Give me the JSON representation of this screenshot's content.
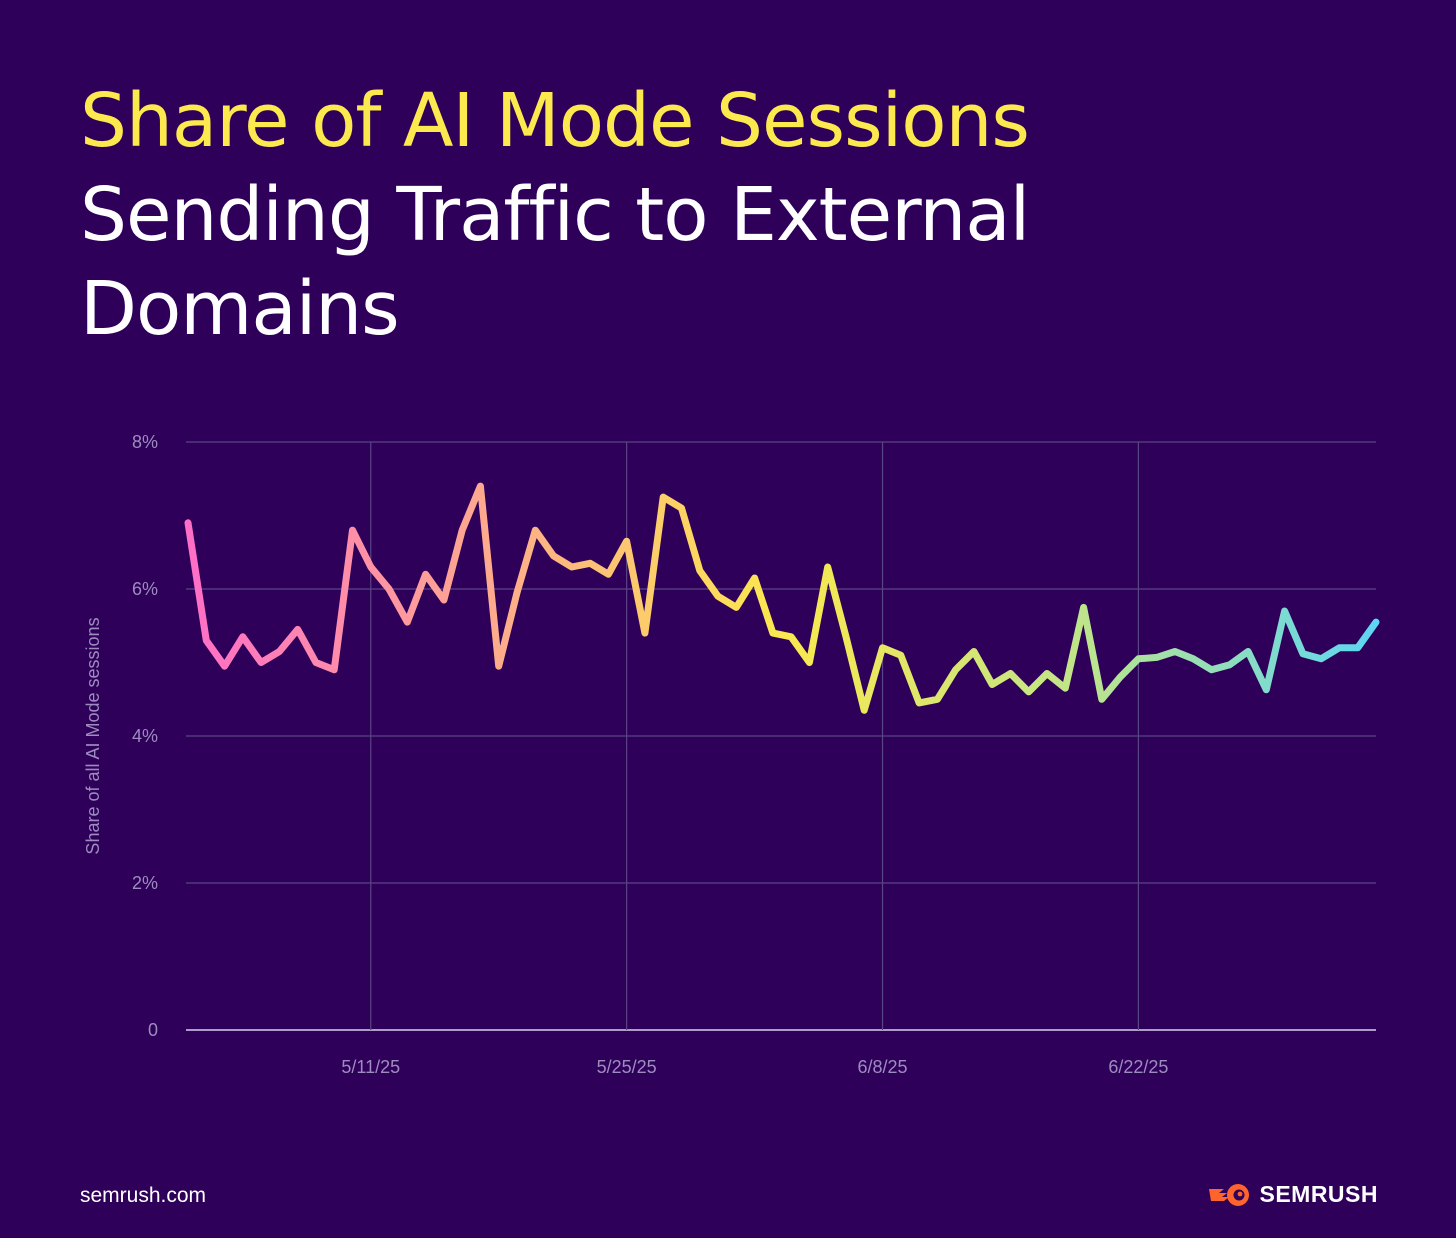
{
  "title_highlight": "Share of AI Mode Sessions",
  "title_rest": "Sending Traffic to External Domains",
  "footer": {
    "site": "semrush.com",
    "brand": "SEMRUSH"
  },
  "colors": {
    "background": "#2e0059",
    "title_highlight": "#fbe94e",
    "gradient": [
      "#ff6ec7",
      "#fda98e",
      "#fbe94e",
      "#bfe58a",
      "#5ed6f2"
    ]
  },
  "chart_data": {
    "type": "line",
    "title": "Share of AI Mode Sessions Sending Traffic to External Domains",
    "ylabel": "Share of all AI Mode sessions",
    "xlabel": "",
    "ylim": [
      0,
      8
    ],
    "yticks": [
      0,
      2,
      4,
      6,
      8
    ],
    "ytick_labels": [
      "0",
      "2%",
      "4%",
      "6%",
      "8%"
    ],
    "xticks": [
      {
        "index": 10,
        "label": "5/11/25"
      },
      {
        "index": 24,
        "label": "5/25/25"
      },
      {
        "index": 38,
        "label": "6/8/25"
      },
      {
        "index": 52,
        "label": "6/22/25"
      }
    ],
    "grid": true,
    "start_date": "5/1/25",
    "series": [
      {
        "name": "Share of AI Mode sessions sending traffic to external domains",
        "values": [
          6.9,
          5.3,
          4.95,
          5.35,
          5.0,
          5.15,
          5.45,
          5.0,
          4.9,
          6.8,
          6.3,
          6.0,
          5.55,
          6.2,
          5.85,
          6.8,
          7.4,
          4.95,
          5.95,
          6.8,
          6.45,
          6.3,
          6.35,
          6.2,
          6.65,
          5.4,
          7.25,
          7.1,
          6.25,
          5.9,
          5.75,
          6.15,
          5.4,
          5.35,
          5.0,
          6.3,
          5.35,
          4.35,
          5.2,
          5.1,
          4.45,
          4.5,
          4.9,
          5.15,
          4.7,
          4.85,
          4.6,
          4.85,
          4.65,
          5.75,
          4.5,
          4.8,
          5.05,
          5.07,
          5.15,
          5.05,
          4.9,
          4.97,
          5.15,
          4.63,
          5.7,
          5.12,
          5.05,
          5.2,
          5.2,
          5.55
        ]
      }
    ]
  }
}
